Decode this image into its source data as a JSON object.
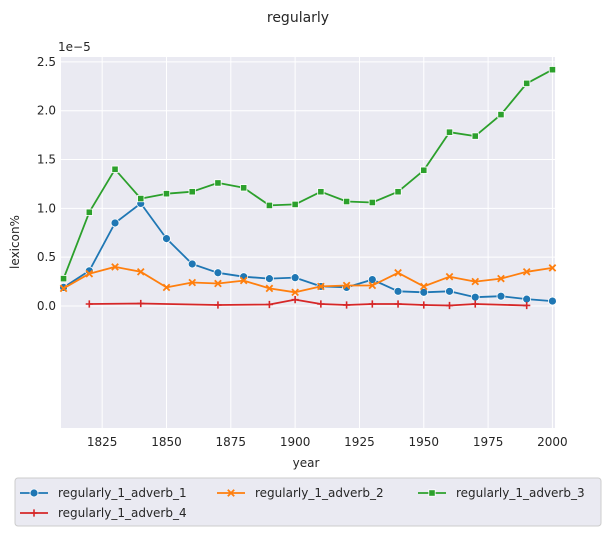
{
  "chart_data": {
    "type": "line",
    "title": "regularly",
    "xlabel": "year",
    "ylabel": "lexicon%",
    "y_exponent_label": "1e−5",
    "xlim": [
      1809,
      2001
    ],
    "ylim": [
      -1.25,
      2.55
    ],
    "xticks": [
      1825,
      1850,
      1875,
      1900,
      1925,
      1950,
      1975,
      2000
    ],
    "yticks": [
      0.0,
      0.5,
      1.0,
      1.5,
      2.0,
      2.5
    ],
    "ytick_labels": [
      "0.0",
      "0.5",
      "1.0",
      "1.5",
      "2.0",
      "2.5"
    ],
    "grid": true,
    "legend_placement": "bottom",
    "series": [
      {
        "name": "regularly_1_adverb_1",
        "color": "#1f77b4",
        "marker": "circle",
        "x": [
          1810,
          1820,
          1830,
          1840,
          1850,
          1860,
          1870,
          1880,
          1890,
          1900,
          1910,
          1920,
          1930,
          1940,
          1950,
          1960,
          1970,
          1980,
          1990,
          2000
        ],
        "y": [
          0.19,
          0.36,
          0.85,
          1.05,
          0.69,
          0.43,
          0.34,
          0.3,
          0.28,
          0.29,
          0.2,
          0.19,
          0.27,
          0.15,
          0.14,
          0.15,
          0.09,
          0.1,
          0.07,
          0.05
        ]
      },
      {
        "name": "regularly_1_adverb_2",
        "color": "#ff7f0e",
        "marker": "x",
        "x": [
          1810,
          1820,
          1830,
          1840,
          1850,
          1860,
          1870,
          1880,
          1890,
          1900,
          1910,
          1920,
          1930,
          1940,
          1950,
          1960,
          1970,
          1980,
          1990,
          2000
        ],
        "y": [
          0.18,
          0.33,
          0.4,
          0.35,
          0.19,
          0.24,
          0.23,
          0.26,
          0.18,
          0.14,
          0.2,
          0.21,
          0.21,
          0.34,
          0.2,
          0.3,
          0.25,
          0.28,
          0.35,
          0.39
        ]
      },
      {
        "name": "regularly_1_adverb_3",
        "color": "#2ca02c",
        "marker": "square",
        "x": [
          1810,
          1820,
          1830,
          1840,
          1850,
          1860,
          1870,
          1880,
          1890,
          1900,
          1910,
          1920,
          1930,
          1940,
          1950,
          1960,
          1970,
          1980,
          1990,
          2000
        ],
        "y": [
          0.28,
          0.96,
          1.4,
          1.1,
          1.15,
          1.17,
          1.26,
          1.21,
          1.03,
          1.04,
          1.17,
          1.07,
          1.06,
          1.17,
          1.39,
          1.78,
          1.74,
          1.96,
          2.28,
          2.42
        ]
      },
      {
        "name": "regularly_1_adverb_4",
        "color": "#d62728",
        "marker": "plus",
        "x": [
          1820,
          1840,
          1870,
          1890,
          1900,
          1910,
          1920,
          1930,
          1940,
          1950,
          1960,
          1970,
          1990
        ],
        "y": [
          0.02,
          0.025,
          0.01,
          0.015,
          0.065,
          0.02,
          0.01,
          0.02,
          0.02,
          0.01,
          0.005,
          0.02,
          0.005
        ]
      }
    ]
  }
}
